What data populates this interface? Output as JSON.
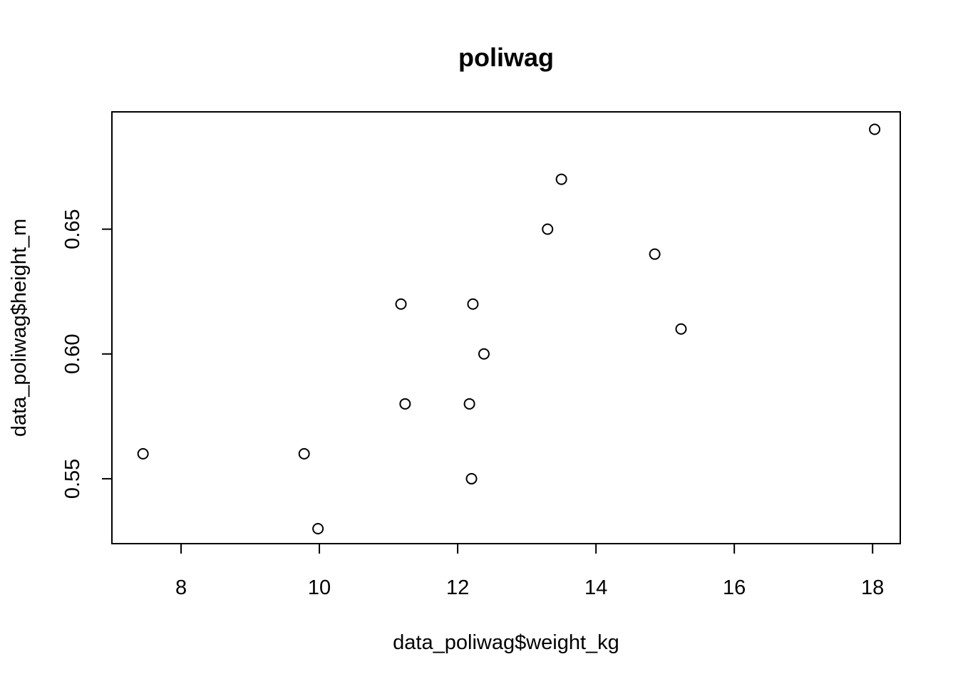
{
  "chart_data": {
    "type": "scatter",
    "title": "poliwag",
    "xlabel": "data_poliwag$weight_kg",
    "ylabel": "data_poliwag$height_m",
    "xlim": [
      7.0,
      18.4
    ],
    "ylim": [
      0.524,
      0.697
    ],
    "x_ticks": [
      "8",
      "10",
      "12",
      "14",
      "16",
      "18"
    ],
    "y_ticks": [
      "0.55",
      "0.60",
      "0.65"
    ],
    "point_color": "#000000",
    "marker": "open-circle",
    "grid": false,
    "points": [
      {
        "x": 7.45,
        "y": 0.56
      },
      {
        "x": 9.78,
        "y": 0.56
      },
      {
        "x": 9.98,
        "y": 0.53
      },
      {
        "x": 11.18,
        "y": 0.62
      },
      {
        "x": 11.24,
        "y": 0.58
      },
      {
        "x": 12.17,
        "y": 0.58
      },
      {
        "x": 12.2,
        "y": 0.55
      },
      {
        "x": 12.22,
        "y": 0.62
      },
      {
        "x": 12.38,
        "y": 0.6
      },
      {
        "x": 13.3,
        "y": 0.65
      },
      {
        "x": 13.5,
        "y": 0.67
      },
      {
        "x": 14.85,
        "y": 0.64
      },
      {
        "x": 15.23,
        "y": 0.61
      },
      {
        "x": 18.03,
        "y": 0.69
      }
    ]
  }
}
